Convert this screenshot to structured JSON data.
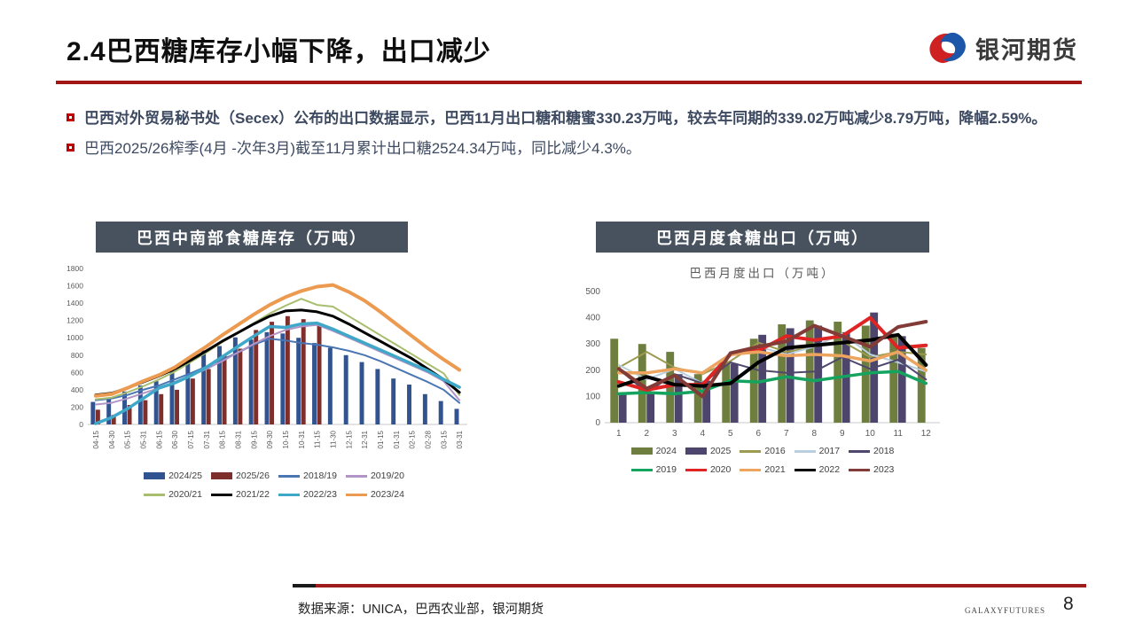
{
  "header": {
    "title": "2.4巴西糖库存小幅下降，出口减少",
    "logo_text": "银河期货",
    "logo_colors": {
      "red": "#cf2121",
      "blue": "#1b56a8"
    }
  },
  "bullets": [
    {
      "text": "巴西对外贸易秘书处（Secex）公布的出口数据显示，巴西11月出口糖和糖蜜330.23万吨，较去年同期的339.02万吨减少8.79万吨，降幅2.59%。"
    },
    {
      "text": "巴西2025/26榨季(4月 -次年3月)截至11月累计出口糖2524.34万吨，同比减少4.3%。"
    }
  ],
  "charts": [
    {
      "banner": "巴西中南部食糖库存（万吨）"
    },
    {
      "banner": "巴西月度食糖出口（万吨）",
      "subtitle": "巴西月度出口（万吨）"
    }
  ],
  "chart_data": [
    {
      "type": "bar+line",
      "title": "巴西中南部食糖库存（万吨）",
      "categories": [
        "04-15",
        "04-30",
        "05-15",
        "05-31",
        "06-15",
        "06-30",
        "07-15",
        "07-31",
        "08-15",
        "08-31",
        "09-15",
        "09-30",
        "10-15",
        "10-31",
        "11-15",
        "11-30",
        "12-15",
        "12-31",
        "01-15",
        "01-31",
        "02-15",
        "02-28",
        "03-15",
        "03-31"
      ],
      "ylim": [
        0,
        1800
      ],
      "y_step": 200,
      "legend_position": "bottom",
      "grid": false,
      "bar_series": [
        {
          "name": "2024/25",
          "color": "#31538f",
          "values": [
            260,
            300,
            380,
            450,
            500,
            620,
            740,
            855,
            905,
            1005,
            980,
            1065,
            1050,
            1000,
            940,
            885,
            800,
            720,
            640,
            530,
            460,
            350,
            270,
            180
          ]
        },
        {
          "name": "2025/26",
          "color": "#7e2f2b",
          "values": [
            170,
            110,
            225,
            280,
            350,
            400,
            530,
            640,
            805,
            875,
            1090,
            1185,
            1250,
            1215,
            1160,
            null,
            null,
            null,
            null,
            null,
            null,
            null,
            null,
            null
          ]
        }
      ],
      "line_series": [
        {
          "name": "2018/19",
          "color": "#4a76b4",
          "width": 2,
          "values": [
            280,
            300,
            340,
            400,
            450,
            520,
            590,
            670,
            750,
            830,
            920,
            990,
            970,
            940,
            920,
            890,
            850,
            800,
            730,
            650,
            570,
            490,
            400,
            250
          ]
        },
        {
          "name": "2019/20",
          "color": "#b294c7",
          "width": 2,
          "values": [
            230,
            250,
            300,
            360,
            420,
            490,
            560,
            640,
            730,
            830,
            930,
            1020,
            1090,
            1130,
            1150,
            1080,
            1000,
            920,
            840,
            760,
            680,
            600,
            500,
            280
          ]
        },
        {
          "name": "2020/21",
          "color": "#a8be6e",
          "width": 2,
          "values": [
            290,
            310,
            370,
            440,
            520,
            610,
            720,
            830,
            950,
            1060,
            1170,
            1280,
            1370,
            1450,
            1380,
            1360,
            1250,
            1140,
            1030,
            920,
            810,
            700,
            590,
            340
          ]
        },
        {
          "name": "2021/22",
          "color": "#000000",
          "width": 3,
          "values": [
            340,
            360,
            420,
            490,
            560,
            640,
            740,
            850,
            960,
            1060,
            1160,
            1250,
            1310,
            1320,
            1300,
            1250,
            1160,
            1060,
            960,
            860,
            760,
            640,
            520,
            370
          ]
        },
        {
          "name": "2022/23",
          "color": "#3fa8c9",
          "width": 3.5,
          "values": [
            10,
            80,
            180,
            300,
            420,
            480,
            560,
            660,
            780,
            900,
            1020,
            1130,
            1120,
            1160,
            1170,
            1100,
            1020,
            940,
            860,
            780,
            700,
            620,
            520,
            430
          ]
        },
        {
          "name": "2023/24",
          "color": "#ec9a50",
          "width": 4,
          "values": [
            330,
            350,
            420,
            500,
            570,
            660,
            780,
            900,
            1030,
            1150,
            1270,
            1380,
            1470,
            1540,
            1590,
            1610,
            1530,
            1430,
            1300,
            1160,
            1020,
            880,
            750,
            630
          ]
        }
      ]
    },
    {
      "type": "bar+line",
      "title": "巴西月度食糖出口（万吨）",
      "subtitle": "巴西月度出口（万吨）",
      "categories": [
        "1",
        "2",
        "3",
        "4",
        "5",
        "6",
        "7",
        "8",
        "9",
        "10",
        "11",
        "12"
      ],
      "ylim": [
        0,
        500
      ],
      "y_step": 100,
      "legend_position": "bottom",
      "grid": false,
      "bar_series": [
        {
          "name": "2024",
          "color": "#6e7e3e",
          "values": [
            320,
            300,
            270,
            185,
            230,
            320,
            375,
            390,
            385,
            370,
            339,
            285
          ]
        },
        {
          "name": "2025",
          "color": "#4d456b",
          "values": [
            110,
            115,
            185,
            160,
            225,
            335,
            360,
            370,
            345,
            420,
            330,
            null
          ]
        }
      ],
      "line_series": [
        {
          "name": "2016",
          "color": "#9c9b4f",
          "width": 2,
          "values": [
            210,
            270,
            210,
            185,
            235,
            305,
            270,
            290,
            310,
            250,
            270,
            260
          ]
        },
        {
          "name": "2017",
          "color": "#b9cfe0",
          "width": 2,
          "values": [
            220,
            165,
            205,
            150,
            270,
            290,
            260,
            290,
            340,
            260,
            230,
            195
          ]
        },
        {
          "name": "2018",
          "color": "#4f486b",
          "width": 2,
          "values": [
            205,
            115,
            185,
            150,
            230,
            200,
            190,
            195,
            250,
            205,
            240,
            165
          ]
        },
        {
          "name": "2019",
          "color": "#14a45f",
          "width": 3.5,
          "values": [
            110,
            115,
            110,
            120,
            160,
            155,
            175,
            160,
            175,
            190,
            195,
            150
          ]
        },
        {
          "name": "2020",
          "color": "#e02424",
          "width": 4,
          "values": [
            155,
            125,
            145,
            145,
            260,
            275,
            330,
            315,
            330,
            400,
            285,
            295
          ]
        },
        {
          "name": "2021",
          "color": "#eca45f",
          "width": 3.5,
          "values": [
            190,
            190,
            205,
            190,
            260,
            270,
            255,
            260,
            255,
            235,
            270,
            200
          ]
        },
        {
          "name": "2022",
          "color": "#000000",
          "width": 4,
          "values": [
            140,
            175,
            145,
            140,
            150,
            230,
            285,
            295,
            305,
            315,
            335,
            220
          ]
        },
        {
          "name": "2023",
          "color": "#823b36",
          "width": 4,
          "values": [
            205,
            130,
            180,
            100,
            265,
            290,
            310,
            370,
            330,
            290,
            365,
            385
          ]
        }
      ]
    }
  ],
  "footer": {
    "source": "数据来源：UNICA，巴西农业部，银河期货",
    "brand": "GALAXYFUTURES",
    "page": "8"
  }
}
